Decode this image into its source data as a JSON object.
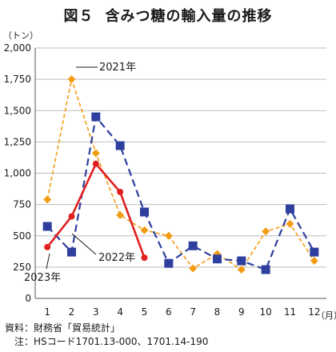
{
  "title_main": "図５",
  "title_sub": "含みつ糖の輸入量の推移",
  "unit_y": "（トン）",
  "unit_x": "（月）",
  "chart_data": {
    "type": "line",
    "title": "図５　含みつ糖の輸入量の推移",
    "ylabel": "（トン）",
    "xlabel": "（月）",
    "x": [
      1,
      2,
      3,
      4,
      5,
      6,
      7,
      8,
      9,
      10,
      11,
      12
    ],
    "ylim": [
      0,
      2000
    ],
    "yticks": [
      0,
      250,
      500,
      750,
      1000,
      1250,
      1500,
      1750,
      2000
    ],
    "ytick_labels": [
      "0",
      "250",
      "500",
      "750",
      "1,000",
      "1,250",
      "1,500",
      "1,750",
      "2,000"
    ],
    "grid": true,
    "series": [
      {
        "name": "2021年",
        "color": "#f39c12",
        "line_style": "dashed",
        "marker": "diamond",
        "values": [
          790,
          1750,
          1160,
          665,
          545,
          500,
          240,
          355,
          230,
          535,
          595,
          300
        ]
      },
      {
        "name": "2022年",
        "color": "#2e3f9e",
        "line_style": "dashed",
        "marker": "square",
        "values": [
          575,
          370,
          1450,
          1220,
          690,
          280,
          420,
          315,
          300,
          230,
          715,
          370
        ]
      },
      {
        "name": "2023年",
        "color": "#e02020",
        "line_style": "solid",
        "marker": "circle",
        "values": [
          410,
          655,
          1075,
          850,
          325,
          null,
          null,
          null,
          null,
          null,
          null,
          null
        ]
      }
    ]
  },
  "notes": {
    "source": "資料：財務省「貿易統計」",
    "note": "　注：HSコード1701.13-000、1701.14-190"
  }
}
